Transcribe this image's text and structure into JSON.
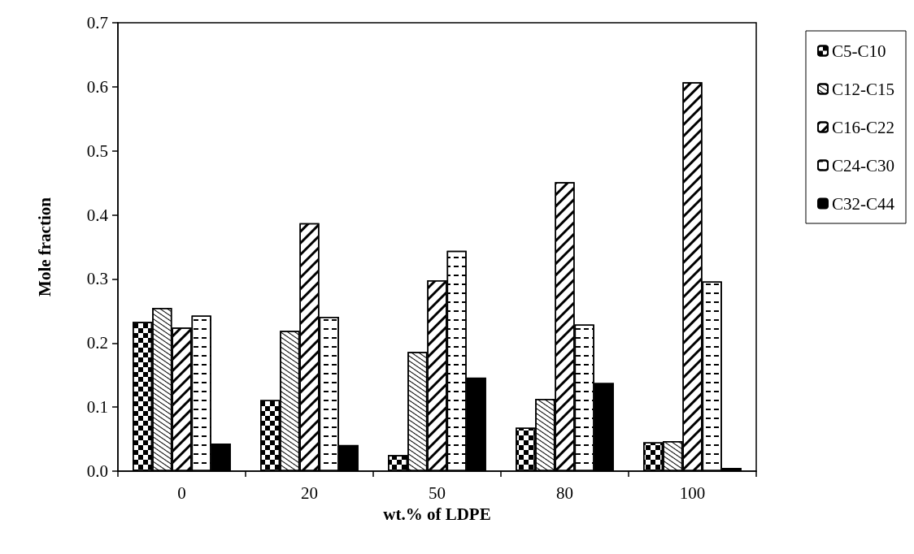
{
  "chart_data": {
    "type": "bar",
    "xlabel": "wt.% of LDPE",
    "ylabel": "Mole fraction",
    "categories": [
      "0",
      "20",
      "50",
      "80",
      "100"
    ],
    "series": [
      {
        "name": "C5-C10",
        "color": "#ffffff",
        "values": [
          0.233,
          0.111,
          0.025,
          0.068,
          0.045
        ]
      },
      {
        "name": "C12-C15",
        "color": "#ffffff",
        "values": [
          0.255,
          0.219,
          0.186,
          0.113,
          0.047
        ]
      },
      {
        "name": "C16-C22",
        "color": "#ffffff",
        "values": [
          0.224,
          0.387,
          0.298,
          0.451,
          0.607
        ]
      },
      {
        "name": "C24-C30",
        "color": "#ffffff",
        "values": [
          0.243,
          0.241,
          0.344,
          0.229,
          0.296
        ]
      },
      {
        "name": "C32-C44",
        "color": "#000000",
        "values": [
          0.043,
          0.041,
          0.146,
          0.138,
          0.005
        ]
      }
    ],
    "ylim": [
      0,
      0.7
    ],
    "yticks": [
      {
        "value": 0,
        "label": "0.0"
      },
      {
        "value": 0.1,
        "label": "0.1"
      },
      {
        "value": 0.2,
        "label": "0.2"
      },
      {
        "value": 0.3,
        "label": "0.3"
      },
      {
        "value": 0.4,
        "label": "0.4"
      },
      {
        "value": 0.5,
        "label": "0.5"
      },
      {
        "value": 0.6,
        "label": "0.6"
      },
      {
        "value": 0.7,
        "label": "0.7"
      }
    ],
    "grid": false,
    "legend": "right"
  }
}
